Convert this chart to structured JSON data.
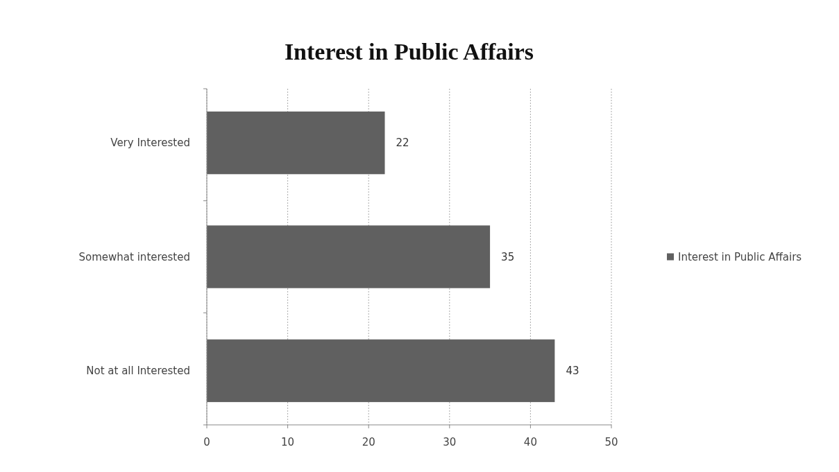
{
  "chart_data": {
    "type": "bar",
    "orientation": "horizontal",
    "title": "Interest in Public Affairs",
    "categories": [
      "Very Interested",
      "Somewhat interested",
      "Not at all Interested"
    ],
    "series": [
      {
        "name": "Interest in Public Affairs",
        "color": "#606060",
        "values": [
          22,
          35,
          43
        ]
      }
    ],
    "xlim": [
      0,
      50
    ],
    "xticks": [
      0,
      10,
      20,
      30,
      40,
      50
    ],
    "grid": "x",
    "legend": "right",
    "data_labels": true
  }
}
